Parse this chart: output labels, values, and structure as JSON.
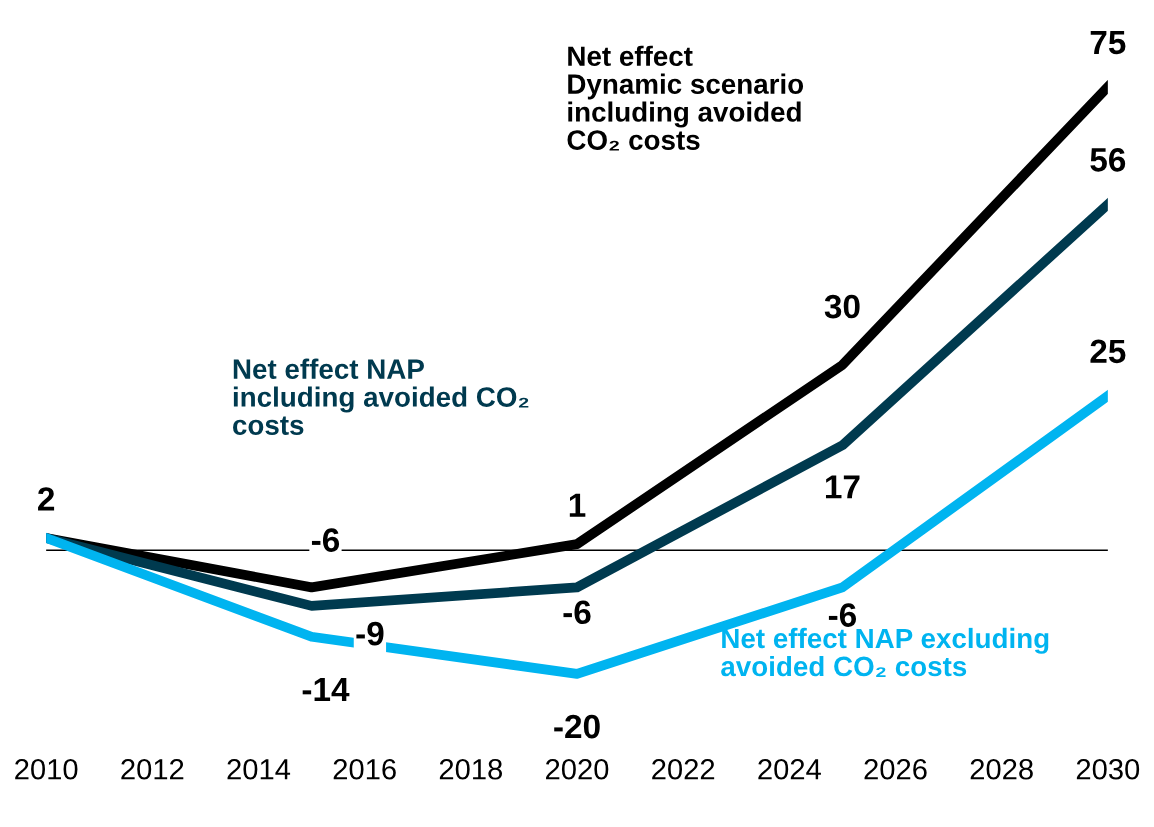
{
  "chart_data": {
    "type": "line",
    "x": [
      2010,
      2015,
      2020,
      2025,
      2030
    ],
    "xlim": [
      2010,
      2030
    ],
    "xticks": [
      2010,
      2012,
      2014,
      2016,
      2018,
      2020,
      2022,
      2024,
      2026,
      2028,
      2030
    ],
    "series": [
      {
        "name": "Net effect Dynamic scenario including avoided CO₂ costs",
        "color": "#000000",
        "values": [
          2,
          -6,
          1,
          30,
          75
        ]
      },
      {
        "name": "Net effect NAP including avoided CO₂ costs",
        "color": "#003a4f",
        "values": [
          2,
          -9,
          -6,
          17,
          56
        ],
        "value_labels": [
          null,
          "-9",
          "-6",
          "17",
          "56"
        ]
      },
      {
        "name": "Net effect NAP excluding avoided CO₂ costs",
        "color": "#00b4f0",
        "values": [
          2,
          -14,
          -20,
          -6,
          25
        ],
        "value_labels": [
          null,
          "-14",
          "-20",
          "-6",
          "25"
        ]
      }
    ],
    "ref_lines": [
      {
        "axis": "y",
        "value": 0,
        "color": "#000000"
      }
    ],
    "data_labels": true,
    "grid": false,
    "legend": false,
    "tick_labels": "x",
    "marker": "none",
    "line_style": "solid"
  }
}
